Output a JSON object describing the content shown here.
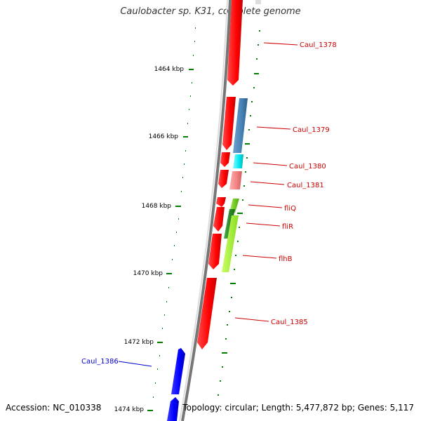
{
  "title": "Caulobacter sp. K31, complete genome",
  "accession": "Accession: NC_010338",
  "topology": "Topology: circular; Length: 5,477,872 bp; Genes: 5,117",
  "ticks": [
    "1464 kbp",
    "1466 kbp",
    "1468 kbp",
    "1470 kbp",
    "1472 kbp",
    "1474 kbp"
  ],
  "genes": [
    {
      "label": "Caul_1378",
      "color": "#cc0000",
      "fill": "#ff0000"
    },
    {
      "label": "Caul_1379",
      "color": "#cc0000",
      "fill": "#4682b4"
    },
    {
      "label": "Caul_1380",
      "color": "#cc0000",
      "fill": "#00e5ee"
    },
    {
      "label": "Caul_1381",
      "color": "#cc0000",
      "fill": "#f08080"
    },
    {
      "label": "fliQ",
      "color": "#cc0000",
      "fill": "#66cc00"
    },
    {
      "label": "fliR",
      "color": "#cc0000",
      "fill": "#228b22"
    },
    {
      "label": "flhB",
      "color": "#cc0000",
      "fill": "#adff2f"
    },
    {
      "label": "Caul_1385",
      "color": "#cc0000",
      "fill": "#ff0000"
    },
    {
      "label": "Caul_1386",
      "color": "#0000cc",
      "fill": "#0000ff"
    }
  ]
}
